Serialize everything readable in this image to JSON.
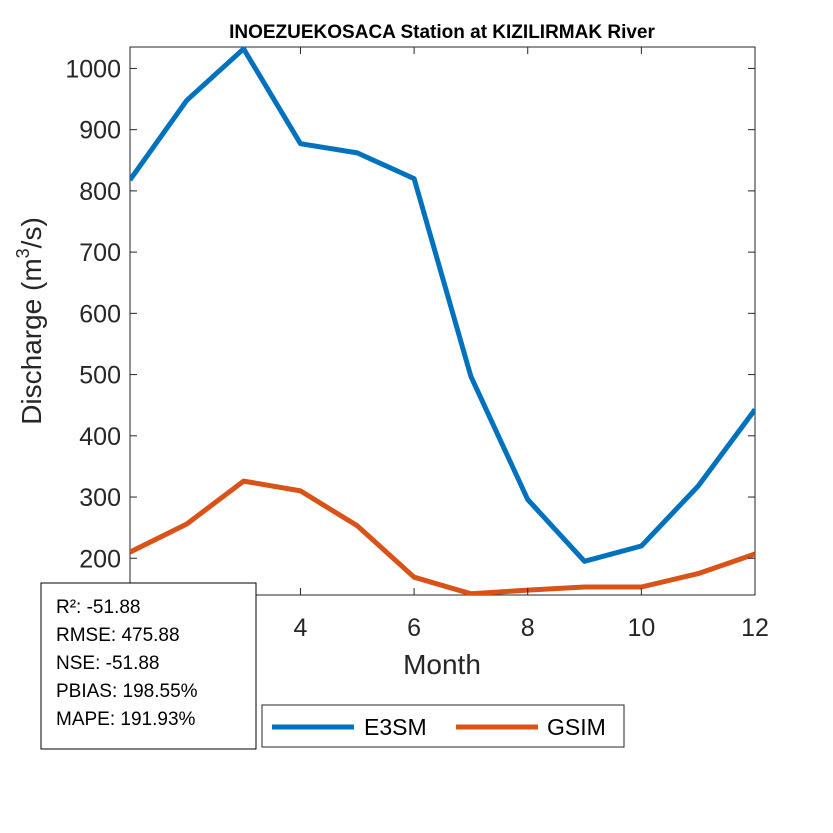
{
  "chart_data": {
    "type": "line",
    "title": "INOEZUEKOSACA  Station at  KIZILIRMAK  River",
    "xlabel": "Month",
    "ylabel": "Discharge (m",
    "ylabel_sup": "3",
    "ylabel_end": "/s)",
    "xlim": [
      1,
      12
    ],
    "ylim": [
      140,
      1035
    ],
    "xticks": [
      4,
      6,
      8,
      10,
      12
    ],
    "yticks": [
      200,
      300,
      400,
      500,
      600,
      700,
      800,
      900,
      1000
    ],
    "x": [
      1,
      2,
      3,
      4,
      5,
      6,
      7,
      8,
      9,
      10,
      11,
      12
    ],
    "series": [
      {
        "name": "E3SM",
        "color": "#0072BD",
        "values": [
          818,
          948,
          1032,
          877,
          862,
          820,
          497,
          296,
          195,
          220,
          318,
          443
        ]
      },
      {
        "name": "GSIM",
        "color": "#D95319",
        "values": [
          210,
          256,
          326,
          310,
          253,
          169,
          142,
          148,
          153,
          153,
          175,
          207
        ]
      }
    ],
    "legend_position": "bottom-outside",
    "grid": false
  },
  "stats": {
    "r2": "R²: -51.88",
    "rmse": "RMSE: 475.88",
    "nse": "NSE: -51.88",
    "pbias": "PBIAS: 198.55%",
    "mape": "MAPE: 191.93%"
  }
}
